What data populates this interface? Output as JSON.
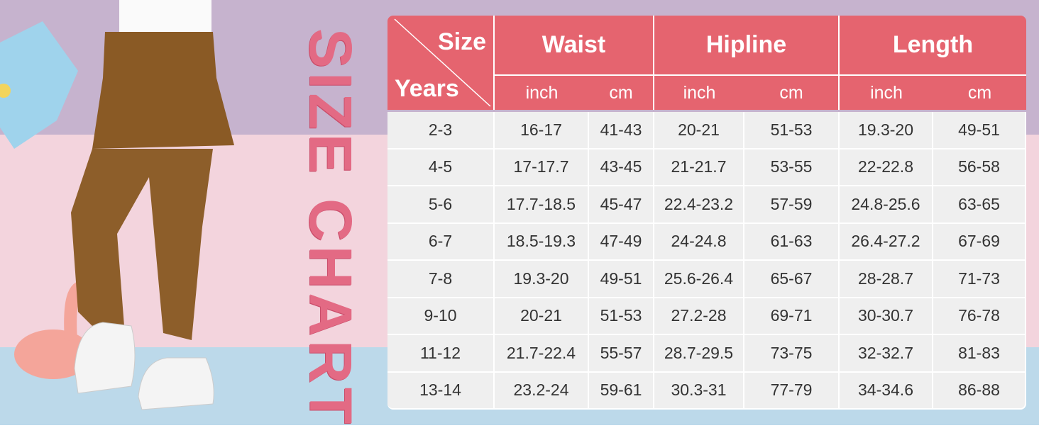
{
  "side_title": "SIZE CHART",
  "table": {
    "corner": {
      "top": "Size",
      "bottom": "Years"
    },
    "groups": [
      "Waist",
      "Hipline",
      "Length"
    ],
    "units": [
      "inch",
      "cm",
      "inch",
      "cm",
      "inch",
      "cm"
    ],
    "rows": [
      [
        "2-3",
        "16-17",
        "41-43",
        "20-21",
        "51-53",
        "19.3-20",
        "49-51"
      ],
      [
        "4-5",
        "17-17.7",
        "43-45",
        "21-21.7",
        "53-55",
        "22-22.8",
        "56-58"
      ],
      [
        "5-6",
        "17.7-18.5",
        "45-47",
        "22.4-23.2",
        "57-59",
        "24.8-25.6",
        "63-65"
      ],
      [
        "6-7",
        "18.5-19.3",
        "47-49",
        "24-24.8",
        "61-63",
        "26.4-27.2",
        "67-69"
      ],
      [
        "7-8",
        "19.3-20",
        "49-51",
        "25.6-26.4",
        "65-67",
        "28-28.7",
        "71-73"
      ],
      [
        "9-10",
        "20-21",
        "51-53",
        "27.2-28",
        "69-71",
        "30-30.7",
        "76-78"
      ],
      [
        "11-12",
        "21.7-22.4",
        "55-57",
        "28.7-29.5",
        "73-75",
        "32-32.7",
        "81-83"
      ],
      [
        "13-14",
        "23.2-24",
        "59-61",
        "30.3-31",
        "77-79",
        "34-34.6",
        "86-88"
      ]
    ]
  }
}
